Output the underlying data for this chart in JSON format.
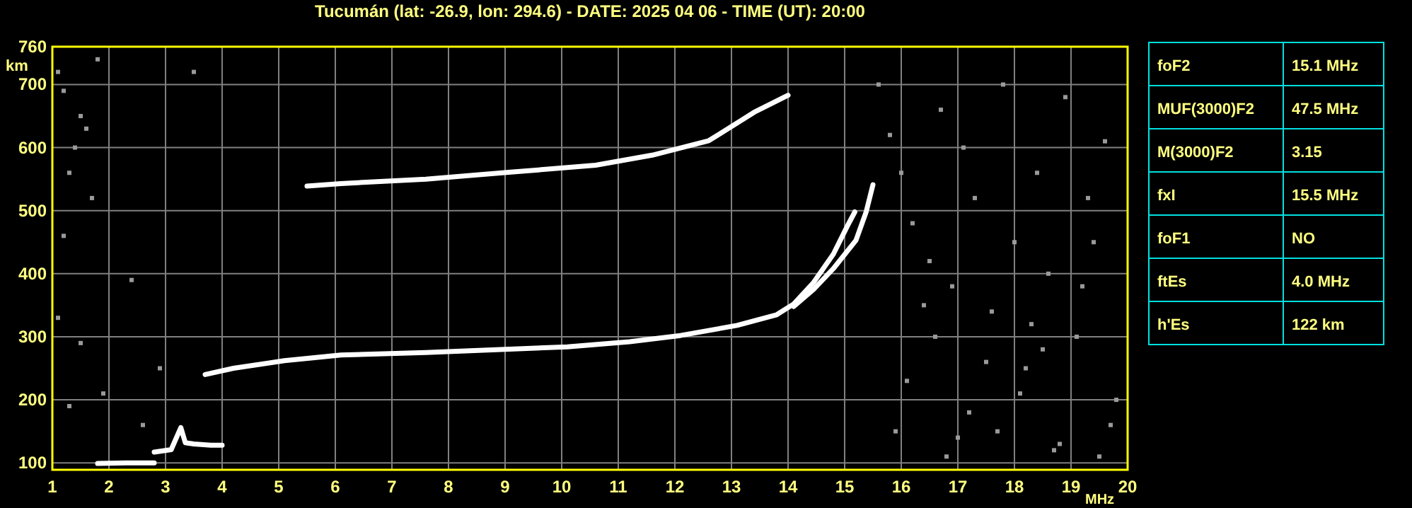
{
  "chart_data": [
    {
      "type": "line",
      "title": "Tucumán (lat: -26.9, lon: 294.6) - DATE: 2025 04 06 - TIME (UT): 20:00",
      "xlabel": "MHz",
      "ylabel": "km",
      "xlim": [
        1,
        20
      ],
      "ylim": [
        89,
        760
      ],
      "xticks": [
        1,
        2,
        3,
        4,
        5,
        6,
        7,
        8,
        9,
        10,
        11,
        12,
        13,
        14,
        15,
        16,
        17,
        18,
        19,
        20
      ],
      "yticks": [
        100,
        200,
        300,
        400,
        500,
        600,
        700,
        760
      ],
      "grid": true,
      "line_style": "solid",
      "series": [
        {
          "color": "#ffffff",
          "x": [
            3.7,
            4.2,
            5.1,
            6.1,
            7.6,
            9.0,
            10.1,
            11.2,
            12.1,
            13.1,
            13.8,
            14.1,
            14.45,
            14.8,
            15.05,
            15.18
          ],
          "values": [
            240,
            250,
            262,
            271,
            275,
            280,
            284,
            292,
            302,
            318,
            335,
            352,
            386,
            431,
            476,
            498
          ]
        },
        {
          "color": "#ffffff",
          "x": [
            14.1,
            14.45,
            14.8,
            15.2,
            15.38,
            15.5
          ],
          "values": [
            348,
            375,
            408,
            453,
            498,
            541
          ]
        },
        {
          "color": "#ffffff",
          "x": [
            5.5,
            6.1,
            7.6,
            9.1,
            10.6,
            11.6,
            12.6,
            13.4,
            14.0
          ],
          "values": [
            539,
            543,
            550,
            561,
            572,
            588,
            611,
            656,
            683
          ]
        },
        {
          "color": "#ffffff",
          "x": [
            1.8,
            2.3,
            2.8
          ],
          "values": [
            99,
            100,
            100
          ]
        },
        {
          "color": "#ffffff",
          "x": [
            2.8,
            3.1,
            3.27,
            3.35,
            3.5,
            3.8,
            4.0
          ],
          "values": [
            117,
            121,
            156,
            132,
            130,
            128,
            128
          ]
        },
        {
          "type": "scatter",
          "color": "#9a9a9a",
          "marker": "square",
          "x": [
            1.1,
            1.2,
            1.5,
            1.6,
            1.4,
            1.8,
            1.3,
            1.7,
            1.2,
            2.4,
            1.1,
            1.5,
            2.9,
            3.5,
            1.3,
            1.9,
            2.6,
            15.6,
            15.8,
            16.0,
            16.2,
            16.5,
            16.7,
            16.9,
            17.1,
            17.3,
            17.6,
            17.8,
            18.0,
            18.2,
            18.4,
            18.6,
            18.9,
            19.1,
            19.3,
            19.6,
            19.8,
            16.1,
            16.6,
            17.2,
            17.7,
            18.3,
            18.8,
            19.4,
            15.9,
            16.8,
            17.5,
            18.1,
            18.7,
            19.2,
            19.7,
            16.4,
            17.0,
            18.5,
            19.5
          ],
          "values": [
            720,
            690,
            650,
            630,
            600,
            740,
            560,
            520,
            460,
            390,
            330,
            290,
            250,
            720,
            190,
            210,
            160,
            700,
            620,
            560,
            480,
            420,
            660,
            380,
            600,
            520,
            340,
            700,
            450,
            250,
            560,
            400,
            680,
            300,
            520,
            610,
            200,
            230,
            300,
            180,
            150,
            320,
            130,
            450,
            150,
            110,
            260,
            210,
            120,
            380,
            160,
            350,
            140,
            280,
            110
          ]
        }
      ]
    },
    {
      "type": "other",
      "categories": [
        "foF2",
        "MUF(3000)F2",
        "M(3000)F2",
        "fxI",
        "foF1",
        "ftEs",
        "h'Es"
      ],
      "value_labels": [
        "15.1 MHz",
        "47.5 MHz",
        "3.15",
        "15.5 MHz",
        "NO",
        "4.0 MHz",
        "122 km"
      ]
    }
  ]
}
